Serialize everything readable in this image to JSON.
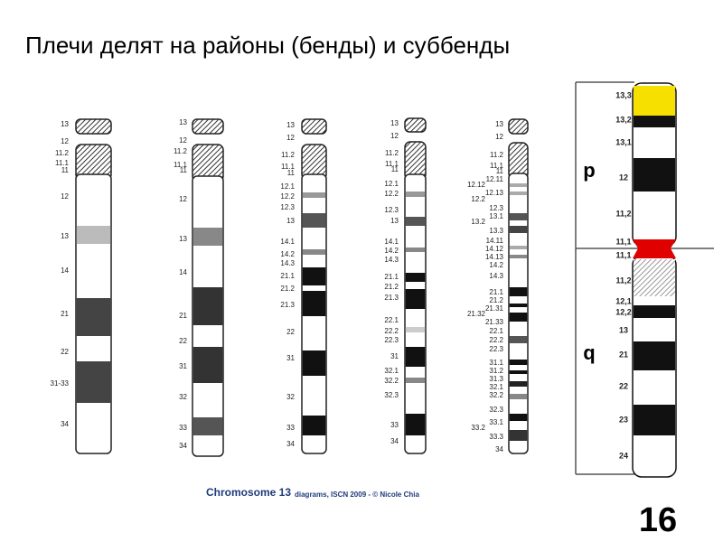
{
  "title": "Плечи делят на районы (бенды) и суббенды",
  "ideograms": [
    {
      "labels": [
        "13",
        "12",
        "11.2",
        "11.1",
        "11",
        "12",
        "13",
        "14",
        "21",
        "22",
        "31-33",
        "34"
      ]
    },
    {
      "labels": [
        "13",
        "12",
        "11.2",
        "11.1",
        "11",
        "12",
        "13",
        "14",
        "21",
        "22",
        "31",
        "32",
        "33",
        "34"
      ]
    },
    {
      "labels": [
        "13",
        "12",
        "11.2",
        "11.1",
        "11",
        "12.1",
        "12.2",
        "12.3",
        "13",
        "14.1",
        "14.2",
        "14.3",
        "21.1",
        "21.2",
        "21.3",
        "22",
        "31",
        "32",
        "33",
        "34"
      ]
    },
    {
      "labels": [
        "13",
        "12",
        "11.2",
        "11.1",
        "11",
        "12.1",
        "12.2",
        "12.3",
        "13",
        "14.1",
        "14.2",
        "14.3",
        "21.1",
        "21.2",
        "21.3",
        "22.1",
        "22.2",
        "22.3",
        "31",
        "32.1",
        "32.2",
        "32.3",
        "33",
        "34"
      ]
    },
    {
      "labels": [
        "13",
        "12",
        "11.2",
        "11.1",
        "11",
        "12.12",
        "12.11",
        "12.2",
        "12.13",
        "12.3",
        "13.1",
        "13.2",
        "13.3",
        "14.11",
        "14.12",
        "14.13",
        "14.2",
        "14.3",
        "21.1",
        "21.2",
        "21.31",
        "21.32",
        "21.33",
        "22.1",
        "22.2",
        "22.3",
        "31.1",
        "31.2",
        "31.3",
        "32.1",
        "32.2",
        "32.3",
        "33.1",
        "33.2",
        "33.3",
        "34"
      ]
    }
  ],
  "caption": {
    "main": "Chromosome 13",
    "detail": "diagrams, ISCN 2009 - © Nicole Chia"
  },
  "chromosome_16": {
    "number": "16",
    "p_label": "p",
    "q_label": "q",
    "labels": [
      "13,3",
      "13,2",
      "13,1",
      "12",
      "11,2",
      "11,1",
      "11,1",
      "11,2",
      "12,1",
      "12,2",
      "13",
      "21",
      "22",
      "23",
      "24"
    ]
  }
}
